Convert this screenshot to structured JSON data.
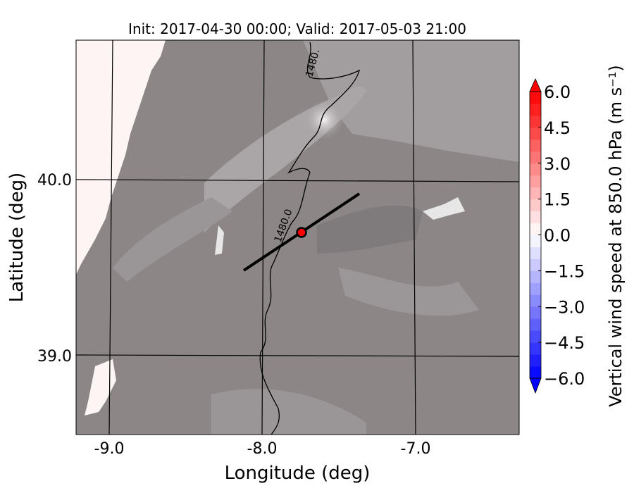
{
  "title": "Init: 2017-04-30 00:00; Valid: 2017-05-03 21:00",
  "xlabel": "Longitude (deg)",
  "ylabel": "Latitude (deg)",
  "xticks": [
    "-9.0",
    "-8.0",
    "-7.0"
  ],
  "yticks": [
    "40.0",
    "39.0"
  ],
  "contour_label": "1480.0",
  "contour_label_top": "1480.",
  "colorbar": {
    "label": "Vertical wind speed at 850.0 hPa (m s⁻¹)",
    "ticks": [
      "6.0",
      "4.5",
      "3.0",
      "1.5",
      "0.0",
      "−1.5",
      "−3.0",
      "−4.5",
      "−6.0"
    ],
    "range": [
      -6.0,
      6.0
    ],
    "step": 0.5,
    "extend": "both",
    "colormap": "bwr",
    "low_color": "#0000ff",
    "high_color": "#ff0000"
  },
  "cross_section": {
    "start": {
      "lon": -8.12,
      "lat": 39.48
    },
    "end": {
      "lon": -7.38,
      "lat": 39.93
    },
    "marker": {
      "lon": -7.75,
      "lat": 39.7,
      "color": "#ff0000"
    }
  },
  "map_background": "#8c8686",
  "ocean_color": "#fdf4f4"
}
